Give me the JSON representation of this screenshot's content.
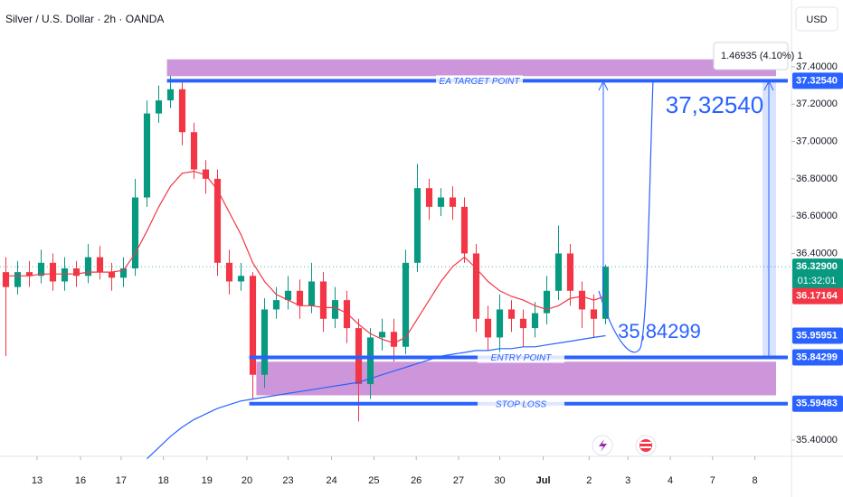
{
  "header": {
    "symbol": "Silver / U.S. Dollar · 2h · OANDA",
    "currency": "USD"
  },
  "chart_data": {
    "type": "candlestick",
    "x": [
      0,
      1,
      2,
      3,
      4,
      5,
      6,
      7,
      8,
      9,
      10,
      11,
      12,
      13,
      14,
      15,
      16,
      17,
      18,
      19,
      20,
      21,
      22,
      23,
      24,
      25,
      26,
      27,
      28,
      29,
      30,
      31,
      32,
      33,
      34,
      35,
      36,
      37,
      38,
      39,
      40,
      41,
      42,
      43,
      44,
      45,
      46,
      47,
      48,
      49,
      50,
      51
    ],
    "open": [
      36.3,
      36.22,
      36.3,
      36.28,
      36.35,
      36.25,
      36.32,
      36.28,
      36.38,
      36.3,
      36.27,
      36.32,
      36.7,
      37.15,
      37.22,
      37.28,
      37.05,
      36.85,
      36.8,
      36.35,
      36.25,
      36.28,
      35.75,
      36.1,
      36.15,
      36.2,
      36.12,
      36.25,
      36.05,
      36.15,
      36.0,
      35.7,
      35.95,
      35.98,
      35.9,
      36.35,
      36.75,
      36.65,
      36.7,
      36.65,
      36.4,
      36.05,
      35.95,
      36.1,
      36.05,
      36.0,
      36.08,
      36.2,
      36.4,
      36.2,
      36.1,
      36.05
    ],
    "high": [
      36.38,
      36.36,
      36.36,
      36.42,
      36.4,
      36.38,
      36.36,
      36.45,
      36.44,
      36.35,
      36.38,
      36.8,
      37.22,
      37.3,
      37.35,
      37.32,
      37.1,
      36.9,
      36.85,
      36.42,
      36.35,
      36.3,
      36.16,
      36.22,
      36.28,
      36.26,
      36.35,
      36.3,
      36.22,
      36.2,
      36.05,
      36.0,
      36.05,
      36.05,
      36.42,
      36.88,
      36.8,
      36.75,
      36.76,
      36.7,
      36.45,
      36.12,
      36.18,
      36.15,
      36.1,
      36.14,
      36.28,
      36.55,
      36.45,
      36.25,
      36.18,
      36.34
    ],
    "low": [
      35.85,
      36.18,
      36.22,
      36.24,
      36.2,
      36.2,
      36.22,
      36.24,
      36.26,
      36.2,
      36.22,
      36.28,
      36.65,
      37.1,
      37.18,
      36.98,
      36.8,
      36.72,
      36.28,
      36.18,
      36.2,
      35.62,
      35.68,
      36.05,
      36.1,
      36.05,
      36.08,
      35.98,
      36.0,
      35.92,
      35.5,
      35.62,
      35.88,
      35.82,
      35.86,
      36.3,
      36.58,
      36.6,
      36.58,
      36.35,
      35.98,
      35.88,
      35.84,
      35.98,
      35.9,
      35.95,
      36.02,
      36.15,
      36.12,
      36.0,
      35.95,
      36.02
    ],
    "close": [
      36.22,
      36.3,
      36.28,
      36.35,
      36.25,
      36.32,
      36.28,
      36.38,
      36.3,
      36.27,
      36.32,
      36.7,
      37.15,
      37.22,
      37.28,
      37.05,
      36.85,
      36.8,
      36.35,
      36.25,
      36.28,
      35.75,
      36.1,
      36.15,
      36.2,
      36.12,
      36.25,
      36.05,
      36.15,
      36.0,
      35.7,
      35.95,
      35.98,
      35.9,
      36.35,
      36.75,
      36.65,
      36.7,
      36.65,
      36.4,
      36.05,
      35.95,
      36.1,
      36.05,
      36.0,
      36.08,
      36.2,
      36.4,
      36.2,
      36.1,
      36.05,
      36.329
    ],
    "up_color": "#089981",
    "down_color": "#f23645",
    "series": [
      {
        "color": "#f23645",
        "values": [
          36.28,
          36.28,
          36.28,
          36.29,
          36.29,
          36.29,
          36.29,
          36.3,
          36.3,
          36.3,
          36.31,
          36.4,
          36.52,
          36.65,
          36.76,
          36.83,
          36.84,
          36.82,
          36.74,
          36.62,
          36.5,
          36.35,
          36.25,
          36.18,
          36.15,
          36.12,
          36.12,
          36.11,
          36.11,
          36.08,
          36.02,
          35.97,
          35.94,
          35.92,
          35.95,
          36.05,
          36.15,
          36.25,
          36.33,
          36.38,
          36.32,
          36.25,
          36.2,
          36.17,
          36.15,
          36.12,
          36.1,
          36.12,
          36.16,
          36.17,
          36.15,
          36.17164
        ]
      },
      {
        "color": "#2962ff",
        "values": [
          null,
          null,
          null,
          null,
          null,
          null,
          null,
          null,
          null,
          null,
          null,
          null,
          35.3,
          35.36,
          35.42,
          35.47,
          35.51,
          35.54,
          35.57,
          35.59,
          35.61,
          35.62,
          35.63,
          35.64,
          35.65,
          35.66,
          35.67,
          35.68,
          35.69,
          35.7,
          35.71,
          35.73,
          35.75,
          35.77,
          35.79,
          35.81,
          35.83,
          35.85,
          35.86,
          35.87,
          35.88,
          35.88,
          35.89,
          35.89,
          35.9,
          35.9,
          35.91,
          35.92,
          35.93,
          35.94,
          35.95,
          35.95951
        ]
      }
    ],
    "xlim": [
      -0.5,
      66.5
    ],
    "ylim": [
      35.313,
      37.758
    ],
    "xticks": [
      {
        "value": 2.65,
        "label": "13"
      },
      {
        "value": 6.35,
        "label": "16"
      },
      {
        "value": 9.8,
        "label": "17"
      },
      {
        "value": 13.4,
        "label": "18"
      },
      {
        "value": 17.1,
        "label": "19"
      },
      {
        "value": 20.5,
        "label": "20"
      },
      {
        "value": 24.0,
        "label": "23"
      },
      {
        "value": 27.7,
        "label": "24"
      },
      {
        "value": 31.3,
        "label": "25"
      },
      {
        "value": 34.9,
        "label": "26"
      },
      {
        "value": 38.5,
        "label": "27"
      },
      {
        "value": 42.0,
        "label": "30"
      },
      {
        "value": 45.7,
        "label": "Jul"
      },
      {
        "value": 49.6,
        "label": "2"
      },
      {
        "value": 52.9,
        "label": "3"
      },
      {
        "value": 56.5,
        "label": "4"
      },
      {
        "value": 60.1,
        "label": "7"
      },
      {
        "value": 63.7,
        "label": "8"
      }
    ],
    "yticks": [
      {
        "value": 37.4,
        "label": "37.40000"
      },
      {
        "value": 37.2,
        "label": "37.20000"
      },
      {
        "value": 37.0,
        "label": "37.00000"
      },
      {
        "value": 36.8,
        "label": "36.80000"
      },
      {
        "value": 36.6,
        "label": "36.60000"
      },
      {
        "value": 36.4,
        "label": "36.40000"
      },
      {
        "value": 35.4,
        "label": "35.40000"
      }
    ],
    "zones": [
      {
        "ylim": [
          37.35,
          37.44
        ],
        "x": [
          13.7,
          65.5
        ],
        "color": "#c88bd6"
      },
      {
        "ylim": [
          35.64,
          35.82
        ],
        "x": [
          21.3,
          65.5
        ],
        "color": "#c88bd6"
      }
    ],
    "levels": [
      {
        "name": "EA TARGET POINT",
        "value": 37.3254,
        "x": [
          13.7,
          66.5
        ],
        "color": "#2962ff"
      },
      {
        "name": "ENTRY POINT",
        "value": 35.84299,
        "x": [
          20.7,
          66.5
        ],
        "color": "#2962ff"
      },
      {
        "name": "STOP LOSS",
        "value": 35.59483,
        "x": [
          20.7,
          66.5
        ],
        "color": "#2962ff"
      }
    ],
    "annotations": [
      "37,32540",
      "35,84299"
    ],
    "tooltip": "1.46935 (4.10%) 1",
    "price_badges": [
      {
        "value": 37.3254,
        "label": "37.32540",
        "color": "#2962ff"
      },
      {
        "value": 36.329,
        "label": "36.32900",
        "countdown": "01:32:01",
        "color": "#089981"
      },
      {
        "value": 36.17164,
        "label": "36.17164",
        "color": "#f23645"
      },
      {
        "value": 35.95951,
        "label": "35.95951",
        "color": "#2962ff"
      },
      {
        "value": 35.84299,
        "label": "35.84299",
        "color": "#2962ff"
      },
      {
        "value": 35.59483,
        "label": "35.59483",
        "color": "#2962ff"
      }
    ]
  }
}
